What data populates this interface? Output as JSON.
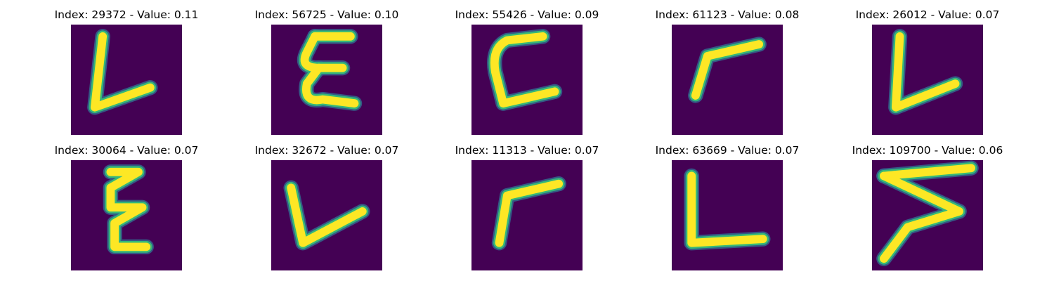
{
  "colors": {
    "background": "#440154",
    "stroke_core": "#fde725",
    "stroke_mid": "#35b779",
    "stroke_edge": "#31688e"
  },
  "panels": [
    {
      "title": "Index: 29372 - Value: 0.11",
      "glyph": "letter-l-glyph"
    },
    {
      "title": "Index: 56725 - Value: 0.10",
      "glyph": "letter-e-glyph"
    },
    {
      "title": "Index: 55426 - Value: 0.09",
      "glyph": "letter-c-glyph"
    },
    {
      "title": "Index: 61123 - Value: 0.08",
      "glyph": "letter-r-glyph"
    },
    {
      "title": "Index: 26012 - Value: 0.07",
      "glyph": "letter-l-glyph"
    },
    {
      "title": "Index: 30064 - Value: 0.07",
      "glyph": "letter-e-glyph"
    },
    {
      "title": "Index: 32672 - Value: 0.07",
      "glyph": "letter-l-glyph"
    },
    {
      "title": "Index: 11313 - Value: 0.07",
      "glyph": "letter-r-glyph"
    },
    {
      "title": "Index: 63669 - Value: 0.07",
      "glyph": "letter-l-glyph"
    },
    {
      "title": "Index: 109700 - Value: 0.06",
      "glyph": "letter-z-glyph"
    }
  ]
}
